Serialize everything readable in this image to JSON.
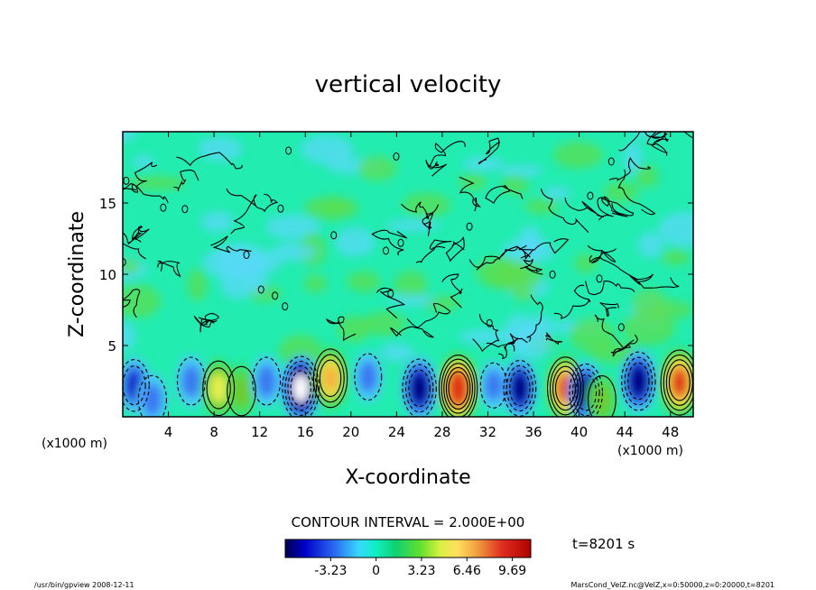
{
  "chart_data": {
    "type": "heatmap",
    "title": "vertical velocity",
    "xlabel": "X-coordinate",
    "ylabel": "Z-coordinate",
    "x_unit_left": "(x1000 m)",
    "x_unit_right": "(x1000 m)",
    "xlim": [
      0,
      50
    ],
    "ylim": [
      0,
      20
    ],
    "x_ticks": [
      4,
      8,
      12,
      16,
      20,
      24,
      28,
      32,
      36,
      40,
      44,
      48
    ],
    "y_ticks": [
      5,
      10,
      15
    ],
    "contour_interval_text": "CONTOUR INTERVAL = 2.000E+00",
    "time_text": "t=8201 s",
    "colorbar": {
      "range": [
        -6.46,
        11.0
      ],
      "tick_labels": [
        "-3.23",
        "0",
        "3.23",
        "6.46",
        "9.69"
      ],
      "tick_values": [
        -3.23,
        0,
        3.23,
        6.46,
        9.69
      ]
    },
    "cells": [
      {
        "x": 1.0,
        "z": 2.2,
        "w": -4.5
      },
      {
        "x": 2.6,
        "z": 1.2,
        "w": -3.2
      },
      {
        "x": 6.0,
        "z": 2.5,
        "w": -3.0
      },
      {
        "x": 8.4,
        "z": 2.0,
        "w": 5.5
      },
      {
        "x": 10.4,
        "z": 1.8,
        "w": 3.5
      },
      {
        "x": 12.6,
        "z": 2.5,
        "w": -3.0
      },
      {
        "x": 15.6,
        "z": 2.0,
        "w": -9.0
      },
      {
        "x": 18.2,
        "z": 2.7,
        "w": 7.0
      },
      {
        "x": 21.5,
        "z": 2.8,
        "w": -2.5
      },
      {
        "x": 26.0,
        "z": 2.0,
        "w": -7.0
      },
      {
        "x": 29.4,
        "z": 2.0,
        "w": 10.0
      },
      {
        "x": 32.5,
        "z": 2.2,
        "w": -2.0
      },
      {
        "x": 34.8,
        "z": 2.0,
        "w": -6.0
      },
      {
        "x": 38.8,
        "z": 2.0,
        "w": 8.5
      },
      {
        "x": 40.6,
        "z": 1.7,
        "w": -6.5
      },
      {
        "x": 42.0,
        "z": 1.2,
        "w": 3.0
      },
      {
        "x": 45.2,
        "z": 2.5,
        "w": -7.0
      },
      {
        "x": 48.8,
        "z": 2.4,
        "w": 9.5
      }
    ]
  },
  "footer": {
    "left": "/usr/bin/gpview   2008-12-11",
    "right": "MarsCond_VelZ.nc@VelZ,x=0:50000,z=0:20000,t=8201"
  }
}
